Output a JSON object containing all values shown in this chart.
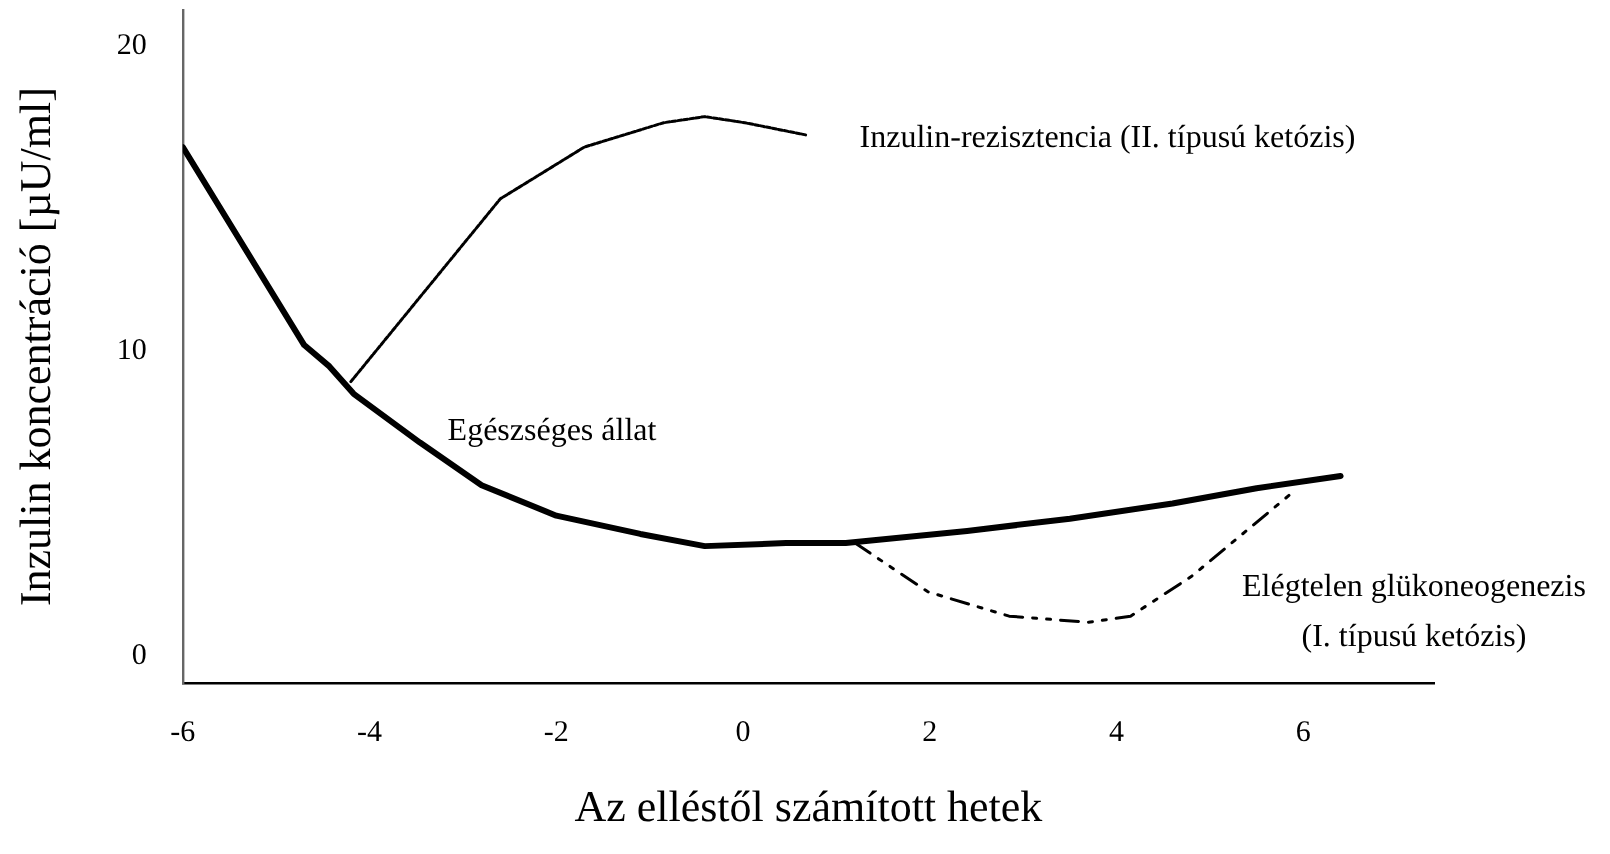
{
  "chart_data": {
    "type": "line",
    "xlabel": "Az elléstől számított hetek",
    "ylabel": "Inzulin koncentráció [µU/ml]",
    "xlim": [
      -6,
      7.4
    ],
    "ylim": [
      -0.9,
      21.2
    ],
    "xticks": [
      -6,
      -4,
      -2,
      0,
      2,
      4,
      6
    ],
    "yticks": [
      0,
      10,
      20
    ],
    "grid": false,
    "legend": false,
    "marker": "none",
    "series": [
      {
        "name": "Egészséges állat",
        "color": "#000000",
        "line_style": "solid",
        "x": [
          -6,
          -4.7,
          -4.43,
          -4.17,
          -3.46,
          -2.8,
          -2,
          -1.1,
          -0.41,
          0.46,
          1.1,
          2.4,
          3.5,
          4.6,
          5.5,
          6.4
        ],
        "values": [
          16.7,
          10.2,
          9.5,
          8.6,
          7.0,
          5.6,
          4.6,
          4.0,
          3.6,
          3.7,
          3.7,
          4.1,
          4.5,
          5.0,
          5.5,
          5.9
        ]
      },
      {
        "name": "Inzulin-rezisztencia (II. típusú ketózis)",
        "color": "#000000",
        "line_style": "dotted",
        "x": [
          -4.2,
          -3.24,
          -2.6,
          -1.7,
          -0.85,
          -0.41,
          0.02,
          0.67
        ],
        "values": [
          9.0,
          12.6,
          15.0,
          16.7,
          17.5,
          17.7,
          17.5,
          17.1
        ]
      },
      {
        "name": "Elégtelen glükoneogenezis (I. típusú ketózis)",
        "color": "#000000",
        "line_style": "dashed",
        "x": [
          1.2,
          1.98,
          2.85,
          3.7,
          4.15,
          4.8,
          5.9
        ],
        "values": [
          3.7,
          2.1,
          1.3,
          1.1,
          1.3,
          2.6,
          5.4
        ]
      }
    ]
  }
}
